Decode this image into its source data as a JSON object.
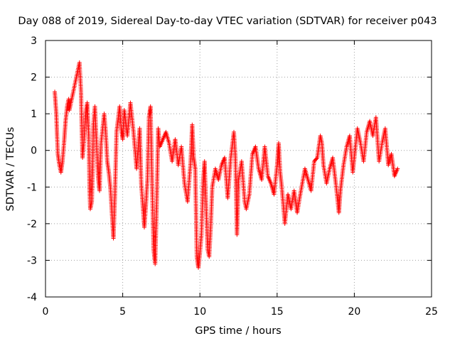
{
  "chart_data": {
    "type": "scatter",
    "title": "Day 088 of 2019, Sidereal Day-to-day VTEC variation (SDTVAR) for receiver p043",
    "xlabel": "GPS time / hours",
    "ylabel": "SDTVAR / TECUs",
    "xlim": [
      0,
      25
    ],
    "ylim": [
      -4,
      3
    ],
    "xticks": [
      0,
      5,
      10,
      15,
      20,
      25
    ],
    "xtick_labels": [
      "0",
      "5",
      "10",
      "15",
      "20",
      "25"
    ],
    "yticks": [
      -4,
      -3,
      -2,
      -1,
      0,
      1,
      2,
      3
    ],
    "ytick_labels": [
      "-4",
      "-3",
      "-2",
      "-1",
      "0",
      "1",
      "2",
      "3"
    ],
    "grid": true,
    "marker": "+",
    "series": [
      {
        "name": "SDTVAR",
        "color": "#ff0000",
        "trace_anchors": [
          [
            0.6,
            1.6
          ],
          [
            0.7,
            1.0
          ],
          [
            0.75,
            0.4
          ],
          [
            0.8,
            -0.1
          ],
          [
            0.9,
            -0.4
          ],
          [
            1.0,
            -0.6
          ],
          [
            1.1,
            -0.3
          ],
          [
            1.2,
            0.2
          ],
          [
            1.3,
            0.8
          ],
          [
            1.4,
            1.2
          ],
          [
            1.5,
            1.4
          ],
          [
            1.55,
            1.1
          ],
          [
            2.2,
            2.4
          ],
          [
            2.3,
            1.6
          ],
          [
            2.35,
            0.6
          ],
          [
            2.4,
            -0.2
          ],
          [
            2.5,
            0.3
          ],
          [
            2.6,
            1.0
          ],
          [
            2.7,
            1.3
          ],
          [
            2.8,
            0.4
          ],
          [
            2.85,
            -1.0
          ],
          [
            2.9,
            -1.6
          ],
          [
            3.0,
            -1.4
          ],
          [
            3.05,
            -0.6
          ],
          [
            3.1,
            0.7
          ],
          [
            3.2,
            1.2
          ],
          [
            3.4,
            -0.7
          ],
          [
            3.5,
            -1.1
          ],
          [
            3.6,
            0.2
          ],
          [
            3.8,
            1.0
          ],
          [
            3.9,
            0.5
          ],
          [
            4.0,
            -0.3
          ],
          [
            4.1,
            -0.6
          ],
          [
            4.2,
            -1.0
          ],
          [
            4.3,
            -1.7
          ],
          [
            4.4,
            -2.4
          ],
          [
            4.5,
            -1.2
          ],
          [
            4.6,
            0.5
          ],
          [
            4.8,
            1.2
          ],
          [
            4.9,
            0.6
          ],
          [
            5.0,
            0.3
          ],
          [
            5.1,
            1.1
          ],
          [
            5.3,
            0.4
          ],
          [
            5.5,
            1.3
          ],
          [
            5.7,
            0.5
          ],
          [
            5.9,
            -0.5
          ],
          [
            6.1,
            0.6
          ],
          [
            6.2,
            -0.9
          ],
          [
            6.4,
            -2.1
          ],
          [
            6.5,
            -1.5
          ],
          [
            6.6,
            -0.8
          ],
          [
            6.7,
            0.9
          ],
          [
            6.8,
            1.2
          ],
          [
            6.9,
            -0.8
          ],
          [
            7.0,
            -2.7
          ],
          [
            7.1,
            -3.1
          ],
          [
            7.2,
            -1.5
          ],
          [
            7.3,
            0.6
          ],
          [
            7.4,
            0.1
          ],
          [
            7.6,
            0.3
          ],
          [
            7.8,
            0.5
          ],
          [
            8.0,
            0.2
          ],
          [
            8.2,
            -0.3
          ],
          [
            8.4,
            0.3
          ],
          [
            8.6,
            -0.4
          ],
          [
            8.8,
            0.1
          ],
          [
            9.0,
            -0.9
          ],
          [
            9.2,
            -1.4
          ],
          [
            9.4,
            -0.3
          ],
          [
            9.5,
            0.7
          ],
          [
            9.6,
            -0.2
          ],
          [
            9.7,
            -0.5
          ],
          [
            9.8,
            -2.9
          ],
          [
            9.9,
            -3.2
          ],
          [
            10.0,
            -2.8
          ],
          [
            10.1,
            -2.3
          ],
          [
            10.2,
            -0.9
          ],
          [
            10.3,
            -0.3
          ],
          [
            10.5,
            -2.7
          ],
          [
            10.6,
            -2.9
          ],
          [
            10.7,
            -2.1
          ],
          [
            10.8,
            -1.0
          ],
          [
            11.0,
            -0.5
          ],
          [
            11.2,
            -0.8
          ],
          [
            11.4,
            -0.4
          ],
          [
            11.6,
            -0.2
          ],
          [
            11.8,
            -1.3
          ],
          [
            12.0,
            -0.2
          ],
          [
            12.2,
            0.5
          ],
          [
            12.3,
            -0.2
          ],
          [
            12.4,
            -2.3
          ],
          [
            12.5,
            -0.8
          ],
          [
            12.7,
            -0.3
          ],
          [
            12.9,
            -1.4
          ],
          [
            13.0,
            -1.6
          ],
          [
            13.2,
            -1.2
          ],
          [
            13.4,
            -0.1
          ],
          [
            13.6,
            0.1
          ],
          [
            13.8,
            -0.5
          ],
          [
            14.0,
            -0.8
          ],
          [
            14.2,
            0.1
          ],
          [
            14.4,
            -0.7
          ],
          [
            14.6,
            -0.9
          ],
          [
            14.8,
            -1.2
          ],
          [
            15.0,
            -0.4
          ],
          [
            15.1,
            0.2
          ],
          [
            15.2,
            -0.6
          ],
          [
            15.3,
            -1.0
          ],
          [
            15.5,
            -2.0
          ],
          [
            15.7,
            -1.2
          ],
          [
            15.9,
            -1.6
          ],
          [
            16.1,
            -1.1
          ],
          [
            16.3,
            -1.7
          ],
          [
            16.5,
            -1.2
          ],
          [
            16.8,
            -0.5
          ],
          [
            17.0,
            -0.8
          ],
          [
            17.2,
            -1.1
          ],
          [
            17.4,
            -0.3
          ],
          [
            17.6,
            -0.2
          ],
          [
            17.8,
            0.4
          ],
          [
            17.9,
            0.2
          ],
          [
            18.0,
            -0.4
          ],
          [
            18.2,
            -0.9
          ],
          [
            18.4,
            -0.5
          ],
          [
            18.6,
            -0.2
          ],
          [
            18.8,
            -0.9
          ],
          [
            19.0,
            -1.7
          ],
          [
            19.1,
            -1.1
          ],
          [
            19.3,
            -0.4
          ],
          [
            19.5,
            0.1
          ],
          [
            19.7,
            0.4
          ],
          [
            19.9,
            -0.6
          ],
          [
            20.2,
            0.6
          ],
          [
            20.4,
            0.2
          ],
          [
            20.6,
            -0.3
          ],
          [
            20.8,
            0.5
          ],
          [
            21.0,
            0.8
          ],
          [
            21.2,
            0.4
          ],
          [
            21.4,
            0.9
          ],
          [
            21.6,
            -0.3
          ],
          [
            21.8,
            0.2
          ],
          [
            22.0,
            0.6
          ],
          [
            22.2,
            -0.4
          ],
          [
            22.4,
            -0.1
          ],
          [
            22.6,
            -0.7
          ],
          [
            22.8,
            -0.5
          ]
        ]
      }
    ]
  }
}
